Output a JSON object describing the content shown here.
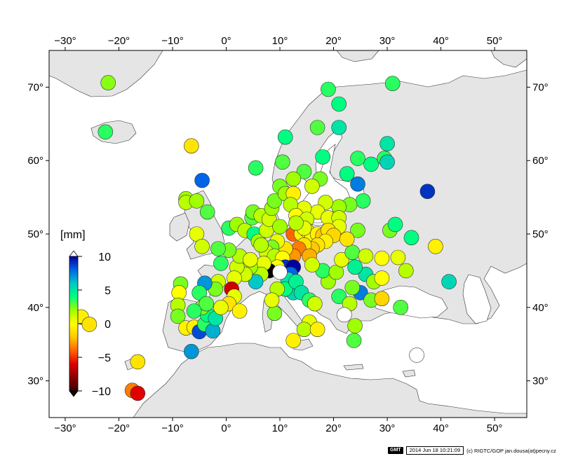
{
  "map": {
    "lon_range": [
      -33,
      56
    ],
    "lat_range": [
      25,
      75
    ],
    "lon_ticks": [
      -30,
      -20,
      -10,
      0,
      10,
      20,
      30,
      40,
      50
    ],
    "lat_ticks": [
      30,
      40,
      50,
      60,
      70
    ],
    "degree_symbol": "°",
    "land_color": "#e5e5e5",
    "sea_color": "#ffffff"
  },
  "colorbar": {
    "unit_label": "[mm]",
    "ticks": [
      10,
      5,
      0,
      -5,
      -10
    ],
    "range": [
      -10,
      10
    ],
    "stops": [
      "#380000",
      "#8c0000",
      "#e00000",
      "#ff6400",
      "#ffc800",
      "#ffff00",
      "#a0ff00",
      "#00ff80",
      "#00c8c8",
      "#0064e6",
      "#0000a0"
    ]
  },
  "stations": [
    {
      "lon": -22,
      "lat": 70.6,
      "v": 2.3
    },
    {
      "lon": -22.5,
      "lat": 63.9,
      "v": 3.5
    },
    {
      "lon": -6.5,
      "lat": 62.0,
      "v": -1.0
    },
    {
      "lon": -4.5,
      "lat": 57.3,
      "v": 8.0
    },
    {
      "lon": -7.5,
      "lat": 54.8,
      "v": 2.0
    },
    {
      "lon": -7.5,
      "lat": 54.3,
      "v": 1.5
    },
    {
      "lon": -5.5,
      "lat": 54.5,
      "v": 2.0
    },
    {
      "lon": -3.5,
      "lat": 53.0,
      "v": 3.0
    },
    {
      "lon": -5.5,
      "lat": 50.0,
      "v": 0.5
    },
    {
      "lon": -4.5,
      "lat": 48.3,
      "v": 1.0
    },
    {
      "lon": 0.5,
      "lat": 50.8,
      "v": 3.5
    },
    {
      "lon": 2.0,
      "lat": 51.3,
      "v": 2.0
    },
    {
      "lon": 3.5,
      "lat": 50.5,
      "v": 1.5
    },
    {
      "lon": 4.8,
      "lat": 52.2,
      "v": 3.0
    },
    {
      "lon": 5.0,
      "lat": 53.0,
      "v": 2.5
    },
    {
      "lon": 6.5,
      "lat": 52.5,
      "v": 1.5
    },
    {
      "lon": 5.2,
      "lat": 50.0,
      "v": 4.0
    },
    {
      "lon": 6.0,
      "lat": 49.0,
      "v": 2.0
    },
    {
      "lon": 7.5,
      "lat": 50.5,
      "v": 1.0
    },
    {
      "lon": 8.0,
      "lat": 52.0,
      "v": 1.0
    },
    {
      "lon": 8.5,
      "lat": 53.5,
      "v": 2.0
    },
    {
      "lon": 9.0,
      "lat": 54.5,
      "v": 2.5
    },
    {
      "lon": 10.0,
      "lat": 56.5,
      "v": 2.5
    },
    {
      "lon": 11.0,
      "lat": 55.5,
      "v": 2.0
    },
    {
      "lon": 12.5,
      "lat": 55.5,
      "v": -0.5
    },
    {
      "lon": 10.5,
      "lat": 59.8,
      "v": 3.0
    },
    {
      "lon": 11.0,
      "lat": 63.2,
      "v": 4.0
    },
    {
      "lon": 5.5,
      "lat": 59.0,
      "v": 3.5
    },
    {
      "lon": 17.0,
      "lat": 64.5,
      "v": 3.0
    },
    {
      "lon": 19.0,
      "lat": 69.7,
      "v": 3.5
    },
    {
      "lon": 21.0,
      "lat": 67.7,
      "v": 4.0
    },
    {
      "lon": 31.0,
      "lat": 70.5,
      "v": 3.5
    },
    {
      "lon": 21.0,
      "lat": 64.5,
      "v": 5.0
    },
    {
      "lon": 18.0,
      "lat": 60.5,
      "v": 4.0
    },
    {
      "lon": 17.5,
      "lat": 57.5,
      "v": 2.5
    },
    {
      "lon": 14.5,
      "lat": 58.5,
      "v": 3.0
    },
    {
      "lon": 12.5,
      "lat": 57.5,
      "v": 2.0
    },
    {
      "lon": 16.0,
      "lat": 56.5,
      "v": 1.0
    },
    {
      "lon": 22.5,
      "lat": 58.2,
      "v": 4.0
    },
    {
      "lon": 24.5,
      "lat": 60.3,
      "v": 3.5
    },
    {
      "lon": 27.0,
      "lat": 59.5,
      "v": 4.0
    },
    {
      "lon": 29.5,
      "lat": 60.3,
      "v": 3.5
    },
    {
      "lon": 30.0,
      "lat": 62.3,
      "v": 5.0
    },
    {
      "lon": 30.0,
      "lat": 59.8,
      "v": 5.5
    },
    {
      "lon": 24.5,
      "lat": 56.8,
      "v": 7.5
    },
    {
      "lon": 37.5,
      "lat": 55.8,
      "v": 9.0
    },
    {
      "lon": 25.5,
      "lat": 54.5,
      "v": 3.5
    },
    {
      "lon": 23.0,
      "lat": 54.0,
      "v": 2.5
    },
    {
      "lon": 21.0,
      "lat": 53.7,
      "v": 2.0
    },
    {
      "lon": 18.5,
      "lat": 54.3,
      "v": 1.0
    },
    {
      "lon": 17.0,
      "lat": 53.0,
      "v": 0.5
    },
    {
      "lon": 14.5,
      "lat": 53.5,
      "v": 0.5
    },
    {
      "lon": 12.0,
      "lat": 54.0,
      "v": 1.5
    },
    {
      "lon": 13.0,
      "lat": 52.5,
      "v": 0.0
    },
    {
      "lon": 15.0,
      "lat": 52.0,
      "v": 1.0
    },
    {
      "lon": 19.0,
      "lat": 52.2,
      "v": 0.5
    },
    {
      "lon": 21.0,
      "lat": 52.2,
      "v": 1.0
    },
    {
      "lon": 21.0,
      "lat": 51.0,
      "v": 0.5
    },
    {
      "lon": 24.5,
      "lat": 50.5,
      "v": 2.5
    },
    {
      "lon": 12.5,
      "lat": 50.0,
      "v": -4.0
    },
    {
      "lon": 14.0,
      "lat": 50.0,
      "v": -0.5
    },
    {
      "lon": 15.0,
      "lat": 50.5,
      "v": 0.0
    },
    {
      "lon": 16.0,
      "lat": 49.5,
      "v": 0.0
    },
    {
      "lon": 17.0,
      "lat": 50.0,
      "v": -0.5
    },
    {
      "lon": 18.0,
      "lat": 49.8,
      "v": -2.0
    },
    {
      "lon": 19.0,
      "lat": 50.5,
      "v": -1.0
    },
    {
      "lon": 20.0,
      "lat": 49.8,
      "v": -1.5
    },
    {
      "lon": 18.5,
      "lat": 49.0,
      "v": -0.5
    },
    {
      "lon": 17.0,
      "lat": 48.5,
      "v": -1.0
    },
    {
      "lon": 16.0,
      "lat": 48.0,
      "v": -2.0
    },
    {
      "lon": 14.5,
      "lat": 48.5,
      "v": -1.0
    },
    {
      "lon": 13.5,
      "lat": 48.0,
      "v": -3.5
    },
    {
      "lon": 15.5,
      "lat": 47.0,
      "v": -2.5
    },
    {
      "lon": 12.5,
      "lat": 47.0,
      "v": -3.0
    },
    {
      "lon": 11.0,
      "lat": 48.0,
      "v": -1.0
    },
    {
      "lon": 9.5,
      "lat": 49.0,
      "v": 0.5
    },
    {
      "lon": 8.5,
      "lat": 48.2,
      "v": 2.5
    },
    {
      "lon": 7.5,
      "lat": 47.5,
      "v": 1.0
    },
    {
      "lon": 9.0,
      "lat": 47.0,
      "v": 1.5
    },
    {
      "lon": 10.5,
      "lat": 46.7,
      "v": 0.0
    },
    {
      "lon": 11.0,
      "lat": 45.5,
      "v": 9.0
    },
    {
      "lon": 12.5,
      "lat": 45.5,
      "v": 10.5
    },
    {
      "lon": 12.0,
      "lat": 44.5,
      "v": 8.0
    },
    {
      "lon": 11.5,
      "lat": 43.8,
      "v": 5.0
    },
    {
      "lon": 12.5,
      "lat": 42.0,
      "v": 5.5
    },
    {
      "lon": 11.0,
      "lat": 42.5,
      "v": 4.0
    },
    {
      "lon": 9.5,
      "lat": 42.5,
      "v": 1.5
    },
    {
      "lon": 9.5,
      "lat": 45.5,
      "v": 0.0
    },
    {
      "lon": 8.0,
      "lat": 45.0,
      "v": -100
    },
    {
      "lon": 7.0,
      "lat": 46.0,
      "v": 0.5
    },
    {
      "lon": 6.5,
      "lat": 44.5,
      "v": 1.5
    },
    {
      "lon": 5.5,
      "lat": 43.5,
      "v": 6.0
    },
    {
      "lon": 4.5,
      "lat": 45.5,
      "v": 2.0
    },
    {
      "lon": 3.5,
      "lat": 44.5,
      "v": 1.0
    },
    {
      "lon": 2.0,
      "lat": 45.5,
      "v": 1.0
    },
    {
      "lon": 1.5,
      "lat": 44.0,
      "v": 0.5
    },
    {
      "lon": 2.5,
      "lat": 47.0,
      "v": 1.5
    },
    {
      "lon": 0.5,
      "lat": 47.8,
      "v": 2.5
    },
    {
      "lon": -1.5,
      "lat": 48.0,
      "v": 3.0
    },
    {
      "lon": -1.0,
      "lat": 46.0,
      "v": 3.5
    },
    {
      "lon": -1.5,
      "lat": 43.5,
      "v": 1.0
    },
    {
      "lon": 1.0,
      "lat": 42.5,
      "v": -6.5
    },
    {
      "lon": 1.5,
      "lat": 41.5,
      "v": 0.5
    },
    {
      "lon": 0.5,
      "lat": 40.5,
      "v": -1.0
    },
    {
      "lon": 2.5,
      "lat": 39.5,
      "v": -0.5
    },
    {
      "lon": -2.0,
      "lat": 42.5,
      "v": 2.5
    },
    {
      "lon": -4.0,
      "lat": 43.3,
      "v": 7.0
    },
    {
      "lon": -5.0,
      "lat": 42.0,
      "v": 3.5
    },
    {
      "lon": -8.5,
      "lat": 43.2,
      "v": 2.5
    },
    {
      "lon": -8.8,
      "lat": 42.0,
      "v": 0.0
    },
    {
      "lon": -9.0,
      "lat": 40.3,
      "v": 1.5
    },
    {
      "lon": -9.0,
      "lat": 38.8,
      "v": 2.5
    },
    {
      "lon": -7.5,
      "lat": 37.2,
      "v": -0.5
    },
    {
      "lon": -6.0,
      "lat": 37.3,
      "v": -0.5
    },
    {
      "lon": -5.0,
      "lat": 36.7,
      "v": 8.5
    },
    {
      "lon": -6.5,
      "lat": 34.0,
      "v": 7.0
    },
    {
      "lon": -4.0,
      "lat": 37.7,
      "v": 3.5
    },
    {
      "lon": -2.5,
      "lat": 36.8,
      "v": 6.5
    },
    {
      "lon": -3.5,
      "lat": 39.0,
      "v": 4.0
    },
    {
      "lon": -4.5,
      "lat": 40.0,
      "v": 2.5
    },
    {
      "lon": -3.7,
      "lat": 40.5,
      "v": 3.0
    },
    {
      "lon": -6.0,
      "lat": 39.5,
      "v": 3.5
    },
    {
      "lon": -2.0,
      "lat": 38.5,
      "v": 5.0
    },
    {
      "lon": -1.0,
      "lat": 40.0,
      "v": 0.5
    },
    {
      "lon": -27,
      "lat": 38.7,
      "v": -0.5
    },
    {
      "lon": -25.5,
      "lat": 37.7,
      "v": -1.0
    },
    {
      "lon": -16.5,
      "lat": 32.6,
      "v": -1.0
    },
    {
      "lon": -17.5,
      "lat": 28.7,
      "v": -3.5
    },
    {
      "lon": -16.5,
      "lat": 28.3,
      "v": -6.0
    },
    {
      "lon": 13.0,
      "lat": 43.5,
      "v": 4.5
    },
    {
      "lon": 14.0,
      "lat": 42.0,
      "v": 5.0
    },
    {
      "lon": 15.5,
      "lat": 41.0,
      "v": 3.5
    },
    {
      "lon": 16.5,
      "lat": 40.5,
      "v": 1.0
    },
    {
      "lon": 15.5,
      "lat": 38.0,
      "v": 0.5
    },
    {
      "lon": 14.5,
      "lat": 37.0,
      "v": 1.5
    },
    {
      "lon": 12.5,
      "lat": 35.5,
      "v": -0.5
    },
    {
      "lon": 17.0,
      "lat": 37.0,
      "v": -0.5
    },
    {
      "lon": 9.0,
      "lat": 39.2,
      "v": 2.5
    },
    {
      "lon": 8.5,
      "lat": 41.0,
      "v": 0.5
    },
    {
      "lon": 19.0,
      "lat": 43.5,
      "v": 2.0
    },
    {
      "lon": 18.0,
      "lat": 45.0,
      "v": 3.5
    },
    {
      "lon": 16.0,
      "lat": 45.8,
      "v": 1.0
    },
    {
      "lon": 20.5,
      "lat": 44.8,
      "v": 2.0
    },
    {
      "lon": 21.5,
      "lat": 46.5,
      "v": 0.5
    },
    {
      "lon": 23.5,
      "lat": 47.5,
      "v": 3.0
    },
    {
      "lon": 22.5,
      "lat": 49.3,
      "v": -1.0
    },
    {
      "lon": 26.0,
      "lat": 47.0,
      "v": 1.0
    },
    {
      "lon": 26.0,
      "lat": 44.5,
      "v": 5.0
    },
    {
      "lon": 24.0,
      "lat": 45.5,
      "v": 4.5
    },
    {
      "lon": 27.5,
      "lat": 43.5,
      "v": 2.0
    },
    {
      "lon": 25.0,
      "lat": 42.0,
      "v": 7.5
    },
    {
      "lon": 23.5,
      "lat": 42.7,
      "v": 2.5
    },
    {
      "lon": 21.0,
      "lat": 41.5,
      "v": 3.5
    },
    {
      "lon": 23.0,
      "lat": 40.5,
      "v": 1.5
    },
    {
      "lon": 22.0,
      "lat": 39.0,
      "v": 100
    },
    {
      "lon": 24.0,
      "lat": 37.5,
      "v": 2.0
    },
    {
      "lon": 23.8,
      "lat": 35.5,
      "v": 3.0
    },
    {
      "lon": 27.0,
      "lat": 41.0,
      "v": 2.5
    },
    {
      "lon": 29.0,
      "lat": 46.7,
      "v": 0.0
    },
    {
      "lon": 29.0,
      "lat": 44.0,
      "v": 0.0
    },
    {
      "lon": 29.0,
      "lat": 41.2,
      "v": -1.5
    },
    {
      "lon": 30.5,
      "lat": 50.5,
      "v": 2.5
    },
    {
      "lon": 31.5,
      "lat": 51.3,
      "v": 4.0
    },
    {
      "lon": 34.5,
      "lat": 49.5,
      "v": 4.0
    },
    {
      "lon": 32.0,
      "lat": 46.8,
      "v": 0.5
    },
    {
      "lon": 33.5,
      "lat": 45.0,
      "v": 1.5
    },
    {
      "lon": 39.0,
      "lat": 48.3,
      "v": -0.5
    },
    {
      "lon": 41.5,
      "lat": 43.5,
      "v": 5.5
    },
    {
      "lon": 32.5,
      "lat": 40.0,
      "v": 3.0
    },
    {
      "lon": 35.5,
      "lat": 33.5,
      "v": 100
    },
    {
      "lon": 10.0,
      "lat": 44.8,
      "v": 100
    },
    {
      "lon": 14.5,
      "lat": 50.8,
      "v": 0.5
    },
    {
      "lon": 13.0,
      "lat": 51.5,
      "v": 1.5
    },
    {
      "lon": 10.0,
      "lat": 51.0,
      "v": 2.0
    },
    {
      "lon": 6.5,
      "lat": 48.5,
      "v": 1.5
    },
    {
      "lon": 4.5,
      "lat": 46.5,
      "v": 0.5
    }
  ]
}
